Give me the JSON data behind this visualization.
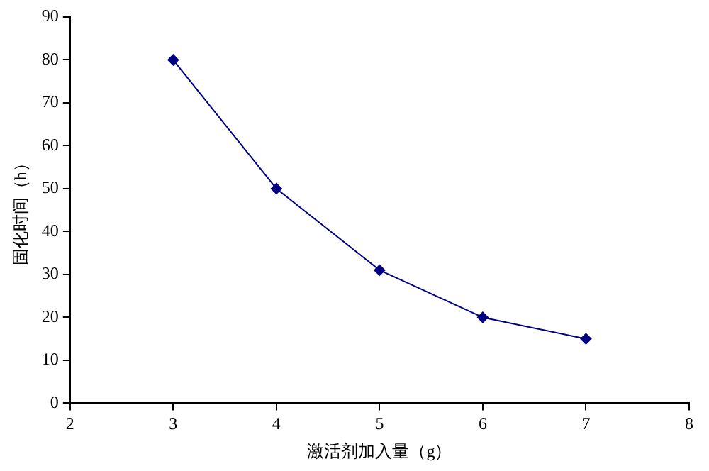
{
  "chart_data": {
    "type": "line",
    "xlabel": "激活剂加入量（g）",
    "ylabel": "固化时间（h）",
    "x": [
      3,
      4,
      5,
      6,
      7
    ],
    "series": [
      {
        "color": "#000080",
        "values": [
          80,
          50,
          31,
          20,
          15
        ]
      }
    ],
    "xlim": [
      2,
      8
    ],
    "xticks": [
      2,
      3,
      4,
      5,
      6,
      7,
      8
    ],
    "ylim": [
      0,
      90
    ],
    "yticks": [
      0,
      10,
      20,
      30,
      40,
      50,
      60,
      70,
      80,
      90
    ],
    "grid": false,
    "legend": false,
    "marker": "diamond",
    "line_style": "solid"
  }
}
